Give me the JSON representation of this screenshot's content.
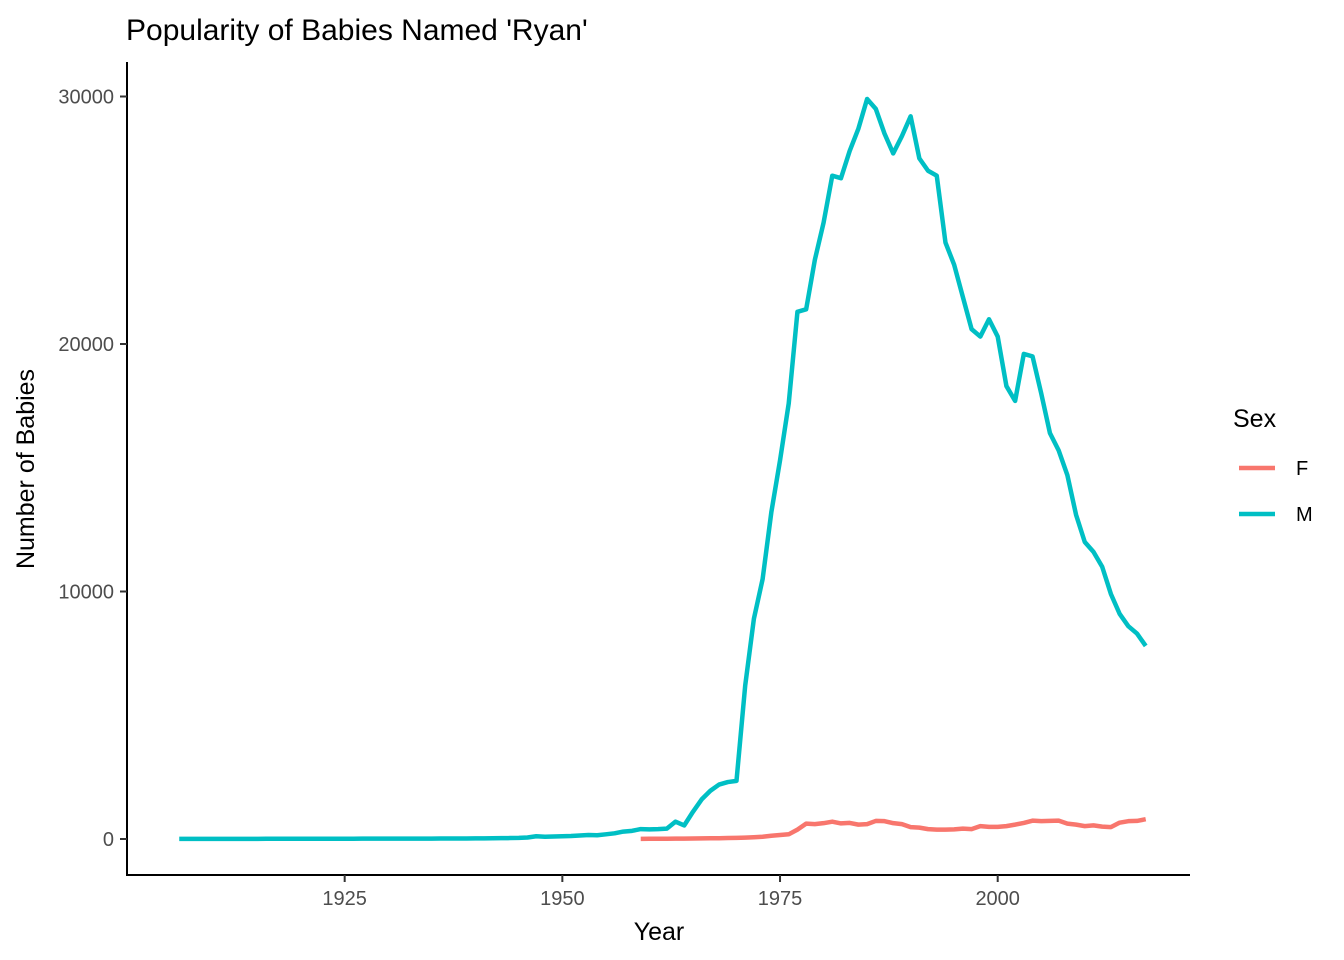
{
  "chart_data": {
    "type": "line",
    "title": "Popularity of Babies Named 'Ryan'",
    "xlabel": "Year",
    "ylabel": "Number of Babies",
    "xlim": [
      1906,
      2017
    ],
    "ylim": [
      0,
      30000
    ],
    "x_ticks": [
      1925,
      1950,
      1975,
      2000
    ],
    "y_ticks": [
      0,
      10000,
      20000,
      30000
    ],
    "grid": false,
    "legend": {
      "title": "Sex",
      "position": "right",
      "entries": [
        {
          "label": "F",
          "color": "#F8766D"
        },
        {
          "label": "M",
          "color": "#00BFC4"
        }
      ]
    },
    "series": [
      {
        "name": "F",
        "color": "#F8766D",
        "points": [
          [
            1959,
            6
          ],
          [
            1960,
            8
          ],
          [
            1961,
            10
          ],
          [
            1962,
            12
          ],
          [
            1963,
            14
          ],
          [
            1964,
            17
          ],
          [
            1965,
            20
          ],
          [
            1966,
            24
          ],
          [
            1967,
            28
          ],
          [
            1968,
            32
          ],
          [
            1969,
            38
          ],
          [
            1970,
            45
          ],
          [
            1971,
            55
          ],
          [
            1972,
            70
          ],
          [
            1973,
            90
          ],
          [
            1974,
            130
          ],
          [
            1975,
            160
          ],
          [
            1976,
            190
          ],
          [
            1977,
            380
          ],
          [
            1978,
            620
          ],
          [
            1979,
            600
          ],
          [
            1980,
            640
          ],
          [
            1981,
            700
          ],
          [
            1982,
            630
          ],
          [
            1983,
            650
          ],
          [
            1984,
            580
          ],
          [
            1985,
            600
          ],
          [
            1986,
            730
          ],
          [
            1987,
            720
          ],
          [
            1988,
            640
          ],
          [
            1989,
            600
          ],
          [
            1990,
            480
          ],
          [
            1991,
            460
          ],
          [
            1992,
            400
          ],
          [
            1993,
            380
          ],
          [
            1994,
            380
          ],
          [
            1995,
            390
          ],
          [
            1996,
            420
          ],
          [
            1997,
            400
          ],
          [
            1998,
            520
          ],
          [
            1999,
            490
          ],
          [
            2000,
            490
          ],
          [
            2001,
            520
          ],
          [
            2002,
            580
          ],
          [
            2003,
            650
          ],
          [
            2004,
            740
          ],
          [
            2005,
            720
          ],
          [
            2006,
            730
          ],
          [
            2007,
            740
          ],
          [
            2008,
            620
          ],
          [
            2009,
            580
          ],
          [
            2010,
            520
          ],
          [
            2011,
            550
          ],
          [
            2012,
            500
          ],
          [
            2013,
            480
          ],
          [
            2014,
            660
          ],
          [
            2015,
            720
          ],
          [
            2016,
            730
          ],
          [
            2017,
            800
          ]
        ]
      },
      {
        "name": "M",
        "color": "#00BFC4",
        "points": [
          [
            1906,
            5
          ],
          [
            1907,
            5
          ],
          [
            1908,
            5
          ],
          [
            1909,
            5
          ],
          [
            1910,
            6
          ],
          [
            1911,
            6
          ],
          [
            1912,
            6
          ],
          [
            1913,
            7
          ],
          [
            1914,
            7
          ],
          [
            1915,
            7
          ],
          [
            1916,
            8
          ],
          [
            1917,
            8
          ],
          [
            1918,
            8
          ],
          [
            1919,
            9
          ],
          [
            1920,
            9
          ],
          [
            1921,
            10
          ],
          [
            1922,
            10
          ],
          [
            1923,
            11
          ],
          [
            1924,
            11
          ],
          [
            1925,
            12
          ],
          [
            1926,
            12
          ],
          [
            1927,
            13
          ],
          [
            1928,
            13
          ],
          [
            1929,
            14
          ],
          [
            1930,
            14
          ],
          [
            1931,
            15
          ],
          [
            1932,
            15
          ],
          [
            1933,
            16
          ],
          [
            1934,
            16
          ],
          [
            1935,
            17
          ],
          [
            1936,
            18
          ],
          [
            1937,
            19
          ],
          [
            1938,
            20
          ],
          [
            1939,
            22
          ],
          [
            1940,
            24
          ],
          [
            1941,
            26
          ],
          [
            1942,
            30
          ],
          [
            1943,
            33
          ],
          [
            1944,
            38
          ],
          [
            1945,
            45
          ],
          [
            1946,
            60
          ],
          [
            1947,
            110
          ],
          [
            1948,
            90
          ],
          [
            1949,
            100
          ],
          [
            1950,
            110
          ],
          [
            1951,
            120
          ],
          [
            1952,
            140
          ],
          [
            1953,
            160
          ],
          [
            1954,
            150
          ],
          [
            1955,
            190
          ],
          [
            1956,
            230
          ],
          [
            1957,
            300
          ],
          [
            1958,
            330
          ],
          [
            1959,
            400
          ],
          [
            1960,
            390
          ],
          [
            1961,
            400
          ],
          [
            1962,
            420
          ],
          [
            1963,
            700
          ],
          [
            1964,
            550
          ],
          [
            1965,
            1100
          ],
          [
            1966,
            1600
          ],
          [
            1967,
            1950
          ],
          [
            1968,
            2200
          ],
          [
            1969,
            2300
          ],
          [
            1970,
            2350
          ],
          [
            1971,
            6200
          ],
          [
            1972,
            8900
          ],
          [
            1973,
            10500
          ],
          [
            1974,
            13200
          ],
          [
            1975,
            15300
          ],
          [
            1976,
            17600
          ],
          [
            1977,
            21300
          ],
          [
            1978,
            21400
          ],
          [
            1979,
            23400
          ],
          [
            1980,
            24900
          ],
          [
            1981,
            26800
          ],
          [
            1982,
            26700
          ],
          [
            1983,
            27800
          ],
          [
            1984,
            28700
          ],
          [
            1985,
            29900
          ],
          [
            1986,
            29500
          ],
          [
            1987,
            28500
          ],
          [
            1988,
            27700
          ],
          [
            1989,
            28400
          ],
          [
            1990,
            29200
          ],
          [
            1991,
            27500
          ],
          [
            1992,
            27000
          ],
          [
            1993,
            26800
          ],
          [
            1994,
            24100
          ],
          [
            1995,
            23200
          ],
          [
            1996,
            21900
          ],
          [
            1997,
            20600
          ],
          [
            1998,
            20300
          ],
          [
            1999,
            21000
          ],
          [
            2000,
            20300
          ],
          [
            2001,
            18300
          ],
          [
            2002,
            17700
          ],
          [
            2003,
            19600
          ],
          [
            2004,
            19500
          ],
          [
            2005,
            18000
          ],
          [
            2006,
            16400
          ],
          [
            2007,
            15700
          ],
          [
            2008,
            14700
          ],
          [
            2009,
            13100
          ],
          [
            2010,
            12000
          ],
          [
            2011,
            11600
          ],
          [
            2012,
            11000
          ],
          [
            2013,
            9900
          ],
          [
            2014,
            9100
          ],
          [
            2015,
            8600
          ],
          [
            2016,
            8300
          ],
          [
            2017,
            7800
          ]
        ]
      }
    ]
  }
}
